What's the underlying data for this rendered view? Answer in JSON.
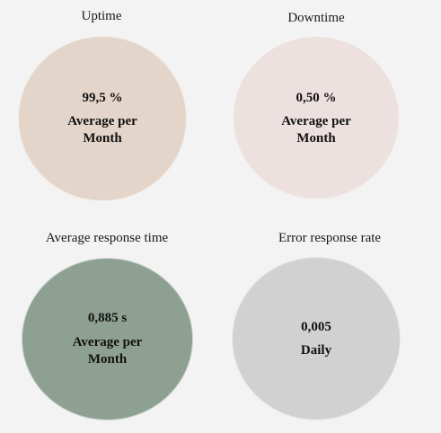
{
  "colors": {
    "background": "#f3f3f3",
    "uptime": "#e3d5c9",
    "downtime": "#ede1e0",
    "response_time": "#8ea092",
    "error_rate": "#d2d1d1"
  },
  "metrics": [
    {
      "title": "Uptime",
      "value": "99,5 %",
      "caption_line1": "Average per",
      "caption_line2": "Month"
    },
    {
      "title": "Downtime",
      "value": "0,50 %",
      "caption_line1": "Average per",
      "caption_line2": "Month"
    },
    {
      "title": "Average response time",
      "value": "0,885 s",
      "caption_line1": "Average per",
      "caption_line2": "Month"
    },
    {
      "title": "Error response rate",
      "value": "0,005",
      "caption_line1": "Daily"
    }
  ]
}
